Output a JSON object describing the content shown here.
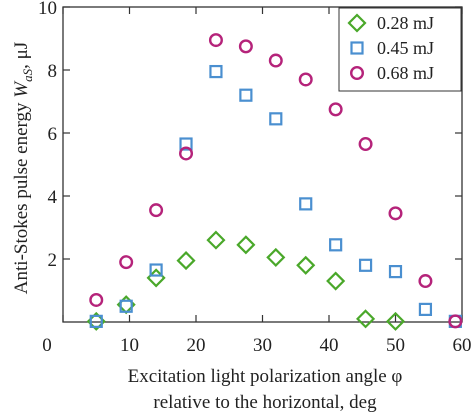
{
  "chart_data": {
    "type": "scatter",
    "xlabel_line1": "Excitation light polarization angle φ",
    "xlabel_line2": "relative to the horizontal,  deg",
    "ylabel_prefix": "Anti-Stokes pulse energy ",
    "ylabel_symbol": "W",
    "ylabel_subscript": "aS",
    "ylabel_suffix": ", μJ",
    "xlim": [
      0,
      60
    ],
    "ylim": [
      0,
      10
    ],
    "xticks": [
      0,
      10,
      20,
      30,
      40,
      50,
      60
    ],
    "yticks": [
      2,
      4,
      6,
      8,
      10
    ],
    "grid": false,
    "legend_position": "top-right",
    "series": [
      {
        "name": "0.28 mJ",
        "marker": "diamond",
        "color": "#4aa82a",
        "points": [
          [
            5,
            0.02
          ],
          [
            9.5,
            0.55
          ],
          [
            14,
            1.4
          ],
          [
            18.5,
            1.95
          ],
          [
            23,
            2.6
          ],
          [
            27.5,
            2.45
          ],
          [
            32,
            2.05
          ],
          [
            36.5,
            1.8
          ],
          [
            41,
            1.3
          ],
          [
            45.5,
            0.1
          ],
          [
            50,
            0.02
          ]
        ]
      },
      {
        "name": "0.45 mJ",
        "marker": "square",
        "color": "#4a8fd0",
        "points": [
          [
            5,
            0.02
          ],
          [
            9.5,
            0.5
          ],
          [
            14,
            1.65
          ],
          [
            18.5,
            5.65
          ],
          [
            23,
            7.95
          ],
          [
            27.5,
            7.2
          ],
          [
            32,
            6.45
          ],
          [
            36.5,
            3.75
          ],
          [
            41,
            2.45
          ],
          [
            45.5,
            1.8
          ],
          [
            50,
            1.6
          ],
          [
            54.5,
            0.4
          ],
          [
            59,
            0.02
          ]
        ]
      },
      {
        "name": "0.68 mJ",
        "marker": "circle",
        "color": "#b5237a",
        "points": [
          [
            5,
            0.7
          ],
          [
            9.5,
            1.9
          ],
          [
            14,
            3.55
          ],
          [
            18.5,
            5.35
          ],
          [
            23,
            8.95
          ],
          [
            27.5,
            8.75
          ],
          [
            32,
            8.3
          ],
          [
            36.5,
            7.7
          ],
          [
            41,
            6.75
          ],
          [
            45.5,
            5.65
          ],
          [
            50,
            3.45
          ],
          [
            54.5,
            1.3
          ],
          [
            59,
            0.02
          ]
        ]
      }
    ]
  }
}
